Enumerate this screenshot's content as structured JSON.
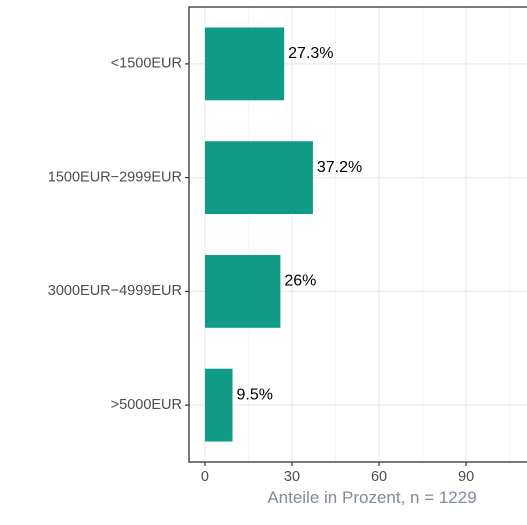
{
  "chart_data": {
    "type": "bar",
    "orientation": "horizontal",
    "categories": [
      "<1500EUR",
      "1500EUR−2999EUR",
      "3000EUR−4999EUR",
      ">5000EUR"
    ],
    "values": [
      27.3,
      37.2,
      26,
      9.5
    ],
    "data_labels": [
      "27.3%",
      "37.2%",
      "26%",
      "9.5%"
    ],
    "xlabel": "Anteile in Prozent, n = 1229",
    "ylabel": "",
    "title": "",
    "xlim": [
      -5.5,
      111
    ],
    "xticks": [
      0,
      30,
      60,
      90
    ],
    "xtick_labels": [
      "0",
      "30",
      "60",
      "90"
    ],
    "grid": true,
    "colors": {
      "bar": "#0f9b87",
      "grid_major": "#ebebeb",
      "grid_minor": "#f5f5f5",
      "axis": "#333333",
      "tick_text": "#4d4d4d",
      "axis_title": "#7f8c9a"
    }
  }
}
